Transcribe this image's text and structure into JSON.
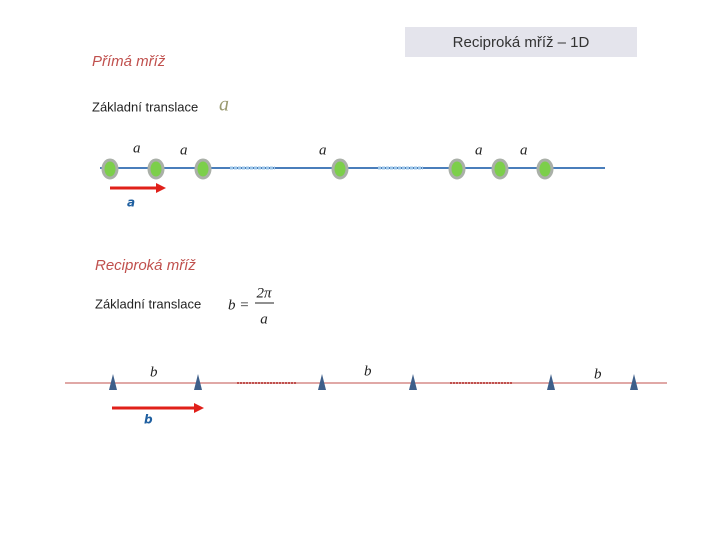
{
  "title": "Reciproká mříž – 1D",
  "direct": {
    "heading": "Přímá mříž",
    "translation_label": "Základní translace",
    "translation_symbol": "a",
    "spacing_labels": [
      "a",
      "a",
      "a",
      "a",
      "a"
    ],
    "vector_label": "a"
  },
  "reciprocal": {
    "heading": "Reciproká mříž",
    "translation_label": "Základní translace",
    "formula": {
      "lhs": "b =",
      "numerator": "2π",
      "denominator": "a"
    },
    "spacing_labels": [
      "b",
      "b",
      "b"
    ],
    "vector_label": "b"
  }
}
